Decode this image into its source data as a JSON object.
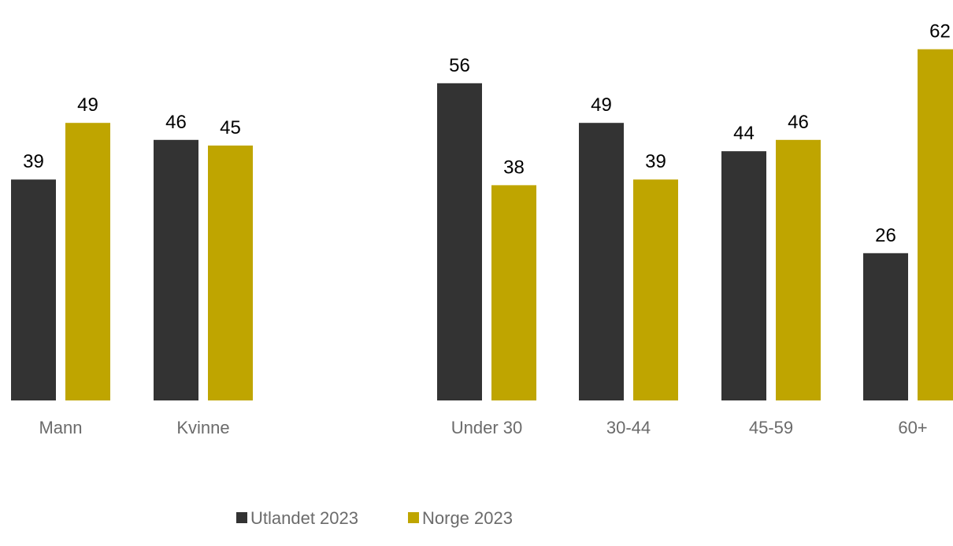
{
  "chart_data": {
    "type": "bar",
    "categories": [
      "Mann",
      "Kvinne",
      "Under 30",
      "30-44",
      "45-59",
      "60+"
    ],
    "series": [
      {
        "name": "Utlandet 2023",
        "values": [
          39,
          46,
          56,
          49,
          44,
          26
        ],
        "color": "#333333"
      },
      {
        "name": "Norge 2023",
        "values": [
          49,
          45,
          38,
          39,
          46,
          62
        ],
        "color": "#BFA500"
      }
    ],
    "ylim": [
      0,
      62
    ],
    "grid": false,
    "legend": "bottom-center",
    "data_labels": true,
    "groups": [
      {
        "categories": [
          "Mann",
          "Kvinne"
        ]
      },
      {
        "categories": [
          "Under 30",
          "30-44",
          "45-59",
          "60+"
        ]
      }
    ]
  }
}
